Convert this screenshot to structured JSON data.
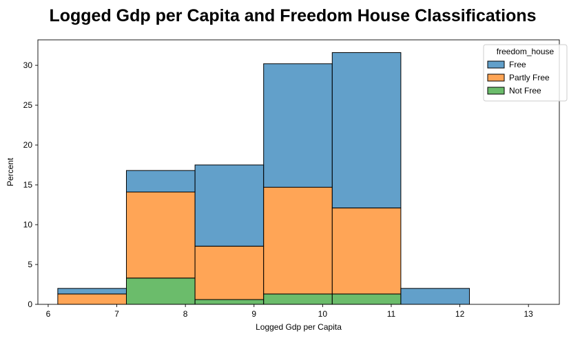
{
  "chart_data": {
    "type": "bar",
    "stacked": true,
    "title": "Logged Gdp per Capita and Freedom House Classifications",
    "xlabel": "Logged Gdp per Capita",
    "ylabel": "Percent",
    "xlim": [
      5.85,
      13.45
    ],
    "ylim": [
      0,
      33.2
    ],
    "xticks": [
      6,
      7,
      8,
      9,
      10,
      11,
      12,
      13
    ],
    "yticks": [
      0,
      5,
      10,
      15,
      20,
      25,
      30
    ],
    "bin_edges": [
      6.14,
      7.14,
      8.14,
      9.14,
      10.14,
      11.14,
      12.14,
      13.14
    ],
    "legend": {
      "title": "freedom_house",
      "position": "top-right"
    },
    "series": [
      {
        "name": "Free",
        "color": "#1f77b4",
        "values": [
          0.7,
          2.7,
          10.2,
          15.5,
          19.5,
          2.0,
          0.0
        ]
      },
      {
        "name": "Partly Free",
        "color": "#ff7f0e",
        "values": [
          1.3,
          10.8,
          6.7,
          13.4,
          10.8,
          0.0,
          0.0
        ]
      },
      {
        "name": "Not Free",
        "color": "#2ca02c",
        "values": [
          0.0,
          3.3,
          0.6,
          1.3,
          1.3,
          0.0,
          0.0
        ]
      }
    ],
    "grid": false
  }
}
